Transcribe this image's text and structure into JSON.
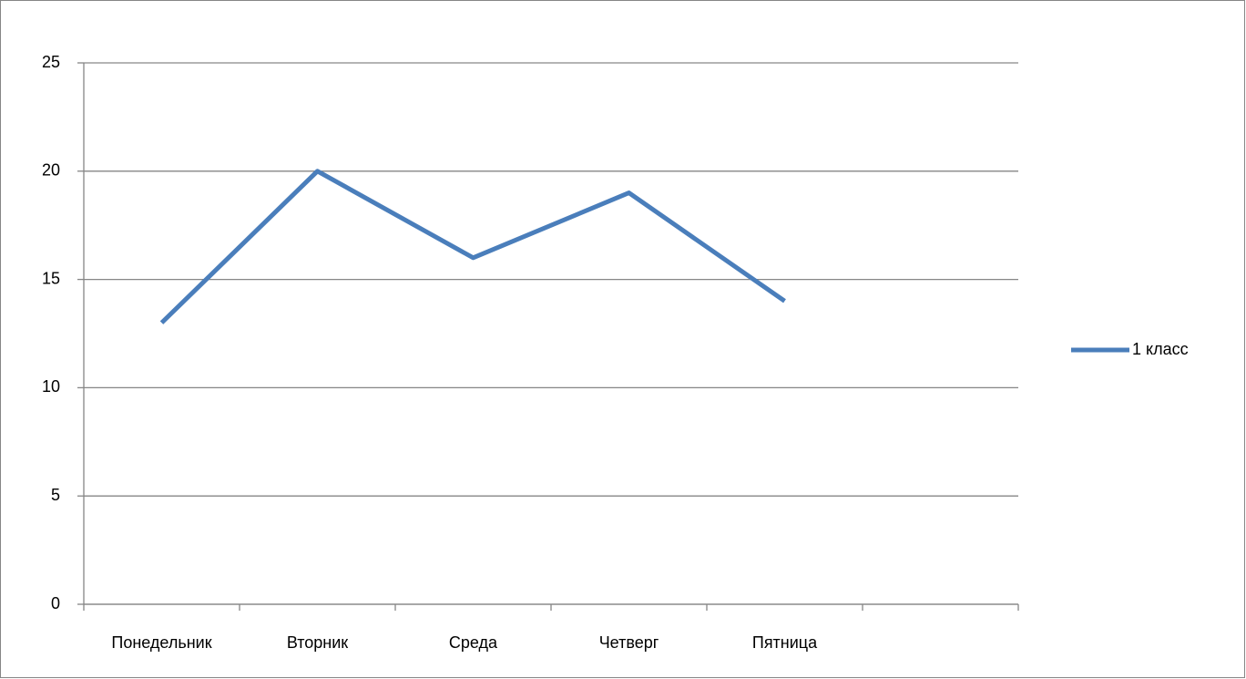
{
  "chart_data": {
    "type": "line",
    "categories": [
      "Понедельник",
      "Вторник",
      "Среда",
      "Четверг",
      "Пятница",
      null
    ],
    "series": [
      {
        "name": "1 класс",
        "color": "#4a7ebb",
        "values": [
          13,
          20,
          16,
          19,
          14,
          null
        ]
      }
    ],
    "ylim": [
      0,
      25
    ],
    "yticks": [
      0,
      5,
      10,
      15,
      20,
      25
    ],
    "grid": true,
    "legend": "right"
  }
}
